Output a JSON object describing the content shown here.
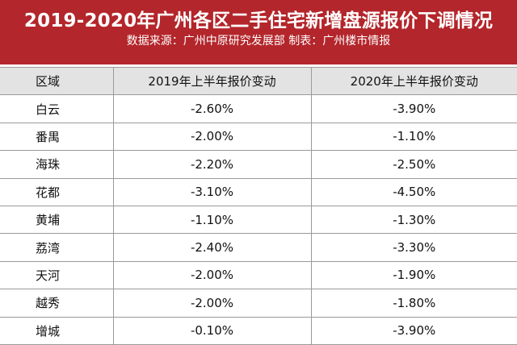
{
  "header": {
    "title": "2019-2020年广州各区二手住宅新增盘源报价下调情况",
    "subtitle": "数据来源：广州中原研究发展部 制表：广州楼市情报"
  },
  "table": {
    "columns": [
      "区域",
      "2019年上半年报价变动",
      "2020年上半年报价变动"
    ],
    "rows": [
      [
        "白云",
        "-2.60%",
        "-3.90%"
      ],
      [
        "番禺",
        "-2.00%",
        "-1.10%"
      ],
      [
        "海珠",
        "-2.20%",
        "-2.50%"
      ],
      [
        "花都",
        "-3.10%",
        "-4.50%"
      ],
      [
        "黄埔",
        "-1.10%",
        "-1.30%"
      ],
      [
        "荔湾",
        "-2.40%",
        "-3.30%"
      ],
      [
        "天河",
        "-2.00%",
        "-1.90%"
      ],
      [
        "越秀",
        "-2.00%",
        "-1.80%"
      ],
      [
        "增城",
        "-0.10%",
        "-3.90%"
      ]
    ]
  }
}
